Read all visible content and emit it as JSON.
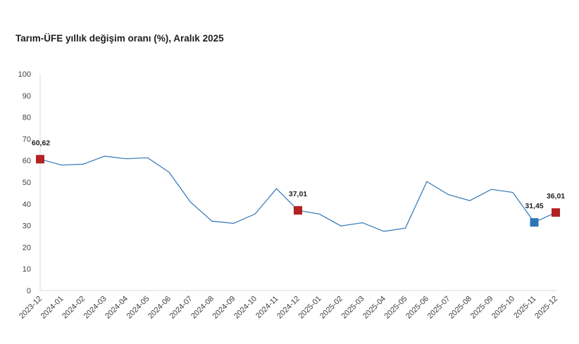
{
  "chart_data": {
    "type": "line",
    "title": "Tarım-ÜFE yıllık değişim oranı (%), Aralık 2025",
    "xlabel": "",
    "ylabel": "",
    "ylim": [
      0,
      100
    ],
    "yticks": [
      0,
      10,
      20,
      30,
      40,
      50,
      60,
      70,
      80,
      90,
      100
    ],
    "grid": false,
    "legend": "none",
    "categories": [
      "2023-12",
      "2024-01",
      "2024-02",
      "2024-03",
      "2024-04",
      "2024-05",
      "2024-06",
      "2024-07",
      "2024-08",
      "2024-09",
      "2024-10",
      "2024-11",
      "2024-12",
      "2025-01",
      "2025-02",
      "2025-03",
      "2025-04",
      "2025-05",
      "2025-06",
      "2025-07",
      "2025-08",
      "2025-09",
      "2025-10",
      "2025-11",
      "2025-12"
    ],
    "series": [
      {
        "color": "#2e75b6",
        "values": [
          60.62,
          57.9,
          58.3,
          62.0,
          60.8,
          61.3,
          54.6,
          40.8,
          32.0,
          31.0,
          35.3,
          47.0,
          37.01,
          35.3,
          29.8,
          31.3,
          27.3,
          28.8,
          50.3,
          44.3,
          41.5,
          46.7,
          45.3,
          31.45,
          36.01
        ]
      }
    ],
    "highlights": [
      {
        "index": 0,
        "label": "60,62",
        "color": "#b22222"
      },
      {
        "index": 12,
        "label": "37,01",
        "color": "#b22222"
      },
      {
        "index": 23,
        "label": "31,45",
        "color": "#2e75b6"
      },
      {
        "index": 24,
        "label": "36,01",
        "color": "#b22222"
      }
    ],
    "axis_color": "#d9d9d9"
  }
}
